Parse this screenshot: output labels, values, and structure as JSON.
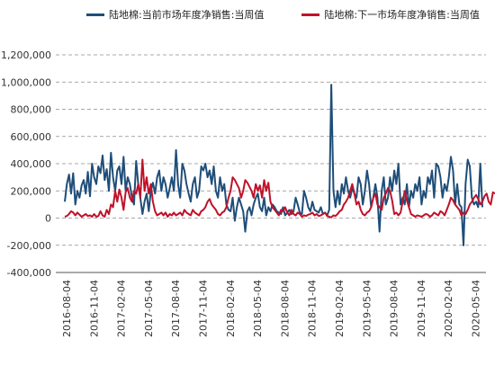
{
  "legend": [
    {
      "name": "陆地棉:当前市场年度净销售:当周值",
      "color": "#1f4e79"
    },
    {
      "name": "陆地棉:下一市场年度净销售:当周值",
      "color": "#c0122a"
    }
  ],
  "chart_data": {
    "type": "line",
    "title": "",
    "xlabel": "",
    "ylabel": "",
    "ylim": [
      -400000,
      1200000
    ],
    "yticks": [
      1200000,
      1000000,
      800000,
      600000,
      400000,
      200000,
      0,
      -200000,
      -400000
    ],
    "ytick_labels": [
      "1,200,000",
      "1,000,000",
      "800,000",
      "600,000",
      "400,000",
      "200,000",
      "0",
      "-200,000",
      "-400,000"
    ],
    "grid": "horizontal dashed",
    "legend_position": "top",
    "x_ticks": [
      "2016-08-04",
      "2016-11-04",
      "2017-02-04",
      "2017-05-04",
      "2017-08-04",
      "2017-11-04",
      "2018-02-04",
      "2018-05-04",
      "2018-08-04",
      "2018-11-04",
      "2019-02-04",
      "2019-05-04",
      "2019-08-04",
      "2019-11-04",
      "2020-02-04",
      "2020-05-04"
    ],
    "x_start": "2016-08-04",
    "x_frequency": "weekly",
    "series": [
      {
        "name": "陆地棉:当前市场年度净销售:当周值",
        "color": "#1f4e79",
        "values": [
          120000,
          250000,
          320000,
          180000,
          330000,
          100000,
          200000,
          150000,
          240000,
          280000,
          180000,
          340000,
          160000,
          400000,
          300000,
          250000,
          380000,
          330000,
          460000,
          280000,
          360000,
          200000,
          480000,
          300000,
          200000,
          350000,
          380000,
          250000,
          450000,
          200000,
          300000,
          250000,
          150000,
          100000,
          420000,
          250000,
          150000,
          30000,
          120000,
          180000,
          50000,
          200000,
          260000,
          180000,
          300000,
          350000,
          200000,
          300000,
          250000,
          150000,
          220000,
          300000,
          200000,
          500000,
          250000,
          150000,
          400000,
          350000,
          250000,
          180000,
          120000,
          250000,
          300000,
          150000,
          200000,
          380000,
          350000,
          400000,
          300000,
          350000,
          250000,
          380000,
          200000,
          150000,
          300000,
          200000,
          250000,
          100000,
          60000,
          50000,
          150000,
          -20000,
          80000,
          150000,
          100000,
          50000,
          -100000,
          50000,
          80000,
          20000,
          100000,
          150000,
          180000,
          80000,
          50000,
          150000,
          20000,
          80000,
          50000,
          100000,
          80000,
          50000,
          40000,
          30000,
          80000,
          20000,
          40000,
          60000,
          30000,
          50000,
          150000,
          100000,
          40000,
          30000,
          200000,
          150000,
          80000,
          50000,
          120000,
          60000,
          50000,
          40000,
          80000,
          30000,
          40000,
          20000,
          60000,
          980000,
          200000,
          80000,
          200000,
          100000,
          250000,
          180000,
          300000,
          200000,
          150000,
          220000,
          180000,
          150000,
          300000,
          250000,
          100000,
          200000,
          350000,
          250000,
          80000,
          150000,
          250000,
          150000,
          -100000,
          200000,
          300000,
          100000,
          150000,
          300000,
          200000,
          350000,
          250000,
          400000,
          100000,
          150000,
          100000,
          250000,
          80000,
          200000,
          150000,
          250000,
          200000,
          300000,
          100000,
          200000,
          150000,
          300000,
          250000,
          350000,
          150000,
          400000,
          380000,
          300000,
          150000,
          250000,
          200000,
          300000,
          450000,
          350000,
          100000,
          250000,
          100000,
          80000,
          -200000,
          250000,
          430000,
          380000,
          150000,
          100000,
          120000,
          80000,
          400000,
          80000
        ]
      },
      {
        "name": "陆地棉:下一市场年度净销售:当周值",
        "color": "#c0122a",
        "values": [
          10000,
          15000,
          30000,
          50000,
          40000,
          20000,
          40000,
          25000,
          10000,
          20000,
          30000,
          15000,
          20000,
          10000,
          30000,
          10000,
          15000,
          50000,
          20000,
          10000,
          60000,
          30000,
          100000,
          80000,
          200000,
          120000,
          210000,
          150000,
          60000,
          190000,
          220000,
          150000,
          120000,
          200000,
          180000,
          250000,
          150000,
          430000,
          200000,
          300000,
          180000,
          250000,
          120000,
          50000,
          20000,
          30000,
          40000,
          20000,
          40000,
          10000,
          30000,
          20000,
          40000,
          20000,
          30000,
          40000,
          20000,
          60000,
          40000,
          30000,
          20000,
          60000,
          40000,
          30000,
          20000,
          50000,
          60000,
          80000,
          120000,
          140000,
          100000,
          80000,
          60000,
          30000,
          20000,
          40000,
          50000,
          80000,
          150000,
          200000,
          300000,
          280000,
          250000,
          220000,
          150000,
          200000,
          280000,
          260000,
          230000,
          200000,
          150000,
          250000,
          200000,
          240000,
          150000,
          280000,
          200000,
          260000,
          120000,
          80000,
          60000,
          40000,
          20000,
          60000,
          50000,
          80000,
          40000,
          20000,
          60000,
          30000,
          20000,
          40000,
          30000,
          10000,
          20000,
          15000,
          25000,
          30000,
          40000,
          20000,
          30000,
          15000,
          20000,
          30000,
          40000,
          15000,
          10000,
          5000,
          20000,
          15000,
          30000,
          50000,
          60000,
          100000,
          120000,
          150000,
          200000,
          250000,
          180000,
          100000,
          120000,
          60000,
          30000,
          20000,
          40000,
          50000,
          80000,
          150000,
          180000,
          100000,
          80000,
          60000,
          150000,
          180000,
          220000,
          200000,
          130000,
          30000,
          40000,
          20000,
          40000,
          120000,
          200000,
          130000,
          80000,
          30000,
          20000,
          10000,
          20000,
          15000,
          10000,
          20000,
          30000,
          25000,
          10000,
          20000,
          40000,
          30000,
          20000,
          50000,
          40000,
          20000,
          60000,
          100000,
          150000,
          130000,
          100000,
          80000,
          60000,
          20000,
          40000,
          30000,
          60000,
          100000,
          120000,
          150000,
          170000,
          140000,
          100000,
          120000,
          160000,
          180000,
          120000,
          100000,
          190000,
          180000
        ]
      }
    ]
  }
}
